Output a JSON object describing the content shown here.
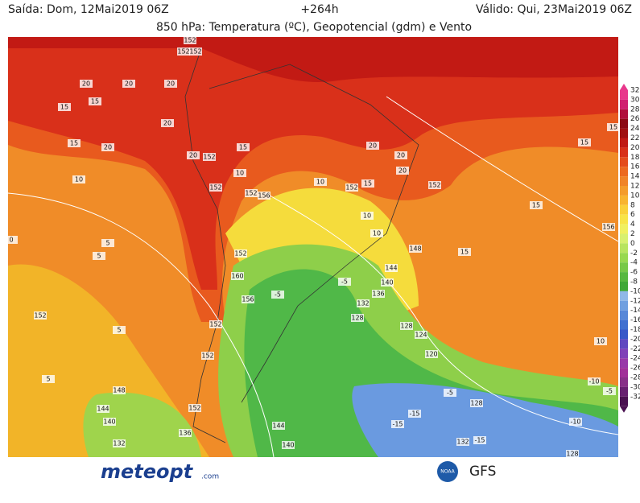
{
  "header": {
    "left": "Saída: Dom, 12Mai2019 06Z",
    "center": "+264h",
    "right": "Válido: Qui, 23Mai2019 06Z",
    "title": "850 hPa: Temperatura (ºC), Geopotencial (gdm) e Vento"
  },
  "colorbar": {
    "labels": [
      32,
      30,
      28,
      26,
      24,
      22,
      20,
      18,
      16,
      14,
      12,
      10,
      8,
      6,
      4,
      2,
      0,
      -2,
      -4,
      -6,
      -8,
      -10,
      -12,
      -14,
      -16,
      -18,
      -20,
      -22,
      -24,
      -26,
      -28,
      -30,
      -32
    ]
  },
  "contour_labels": [
    152,
    152,
    152,
    20,
    20,
    20,
    15,
    15,
    20,
    15,
    20,
    20,
    152,
    15,
    20,
    20,
    20,
    15,
    15,
    10,
    10,
    152,
    152,
    156,
    10,
    152,
    15,
    152,
    15,
    156,
    0,
    5,
    5,
    152,
    5,
    10,
    5,
    148,
    144,
    140,
    132,
    144,
    140,
    136,
    -5,
    -5,
    140,
    136,
    132,
    128,
    128,
    124,
    120,
    144,
    148,
    15,
    10,
    10,
    -15,
    -15,
    -10,
    -10,
    -5,
    -5,
    128,
    132,
    -15,
    128,
    152,
    152,
    152,
    160,
    156,
    152
  ],
  "footer": {
    "brand": "meteopt",
    "brand_suffix": ".com",
    "agency": "NOAA",
    "model": "GFS"
  }
}
